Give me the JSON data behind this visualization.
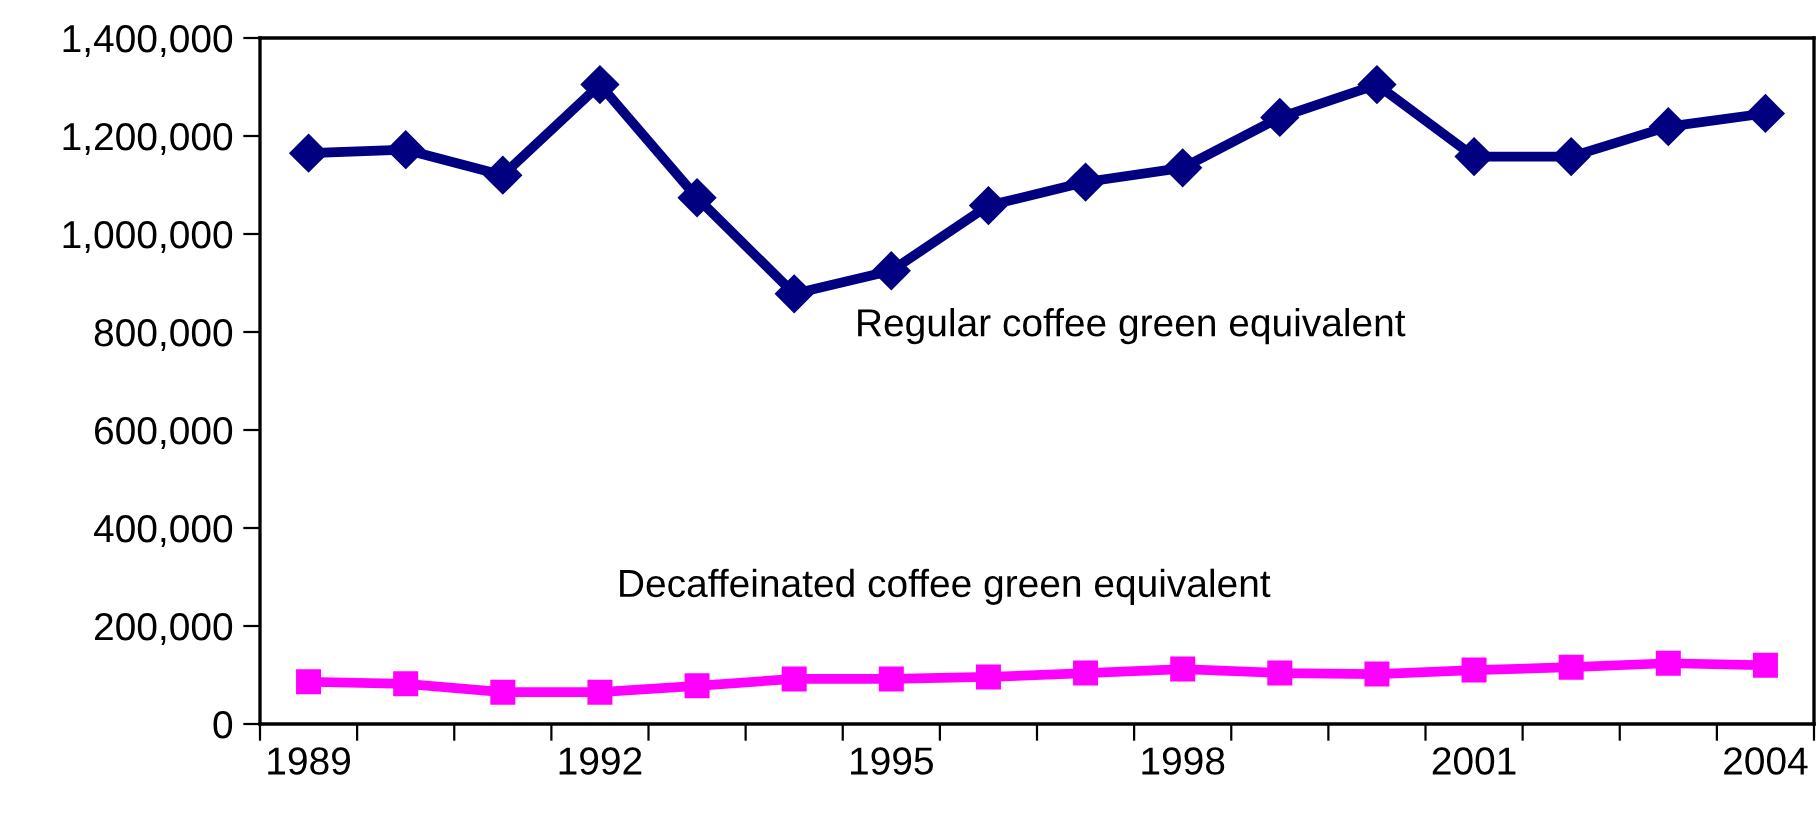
{
  "chart_data": {
    "type": "line",
    "categories": [
      "1989",
      null,
      null,
      "1992",
      null,
      null,
      "1995",
      null,
      null,
      "1998",
      null,
      null,
      "2001",
      null,
      null,
      "2004"
    ],
    "series": [
      {
        "name": "Regular coffee green equivalent",
        "color": "#000080",
        "marker": "diamond",
        "values": [
          1165000,
          1172000,
          1120000,
          1305000,
          1074000,
          878000,
          925000,
          1058000,
          1106000,
          1135000,
          1238000,
          1305000,
          1158000,
          1158000,
          1219000,
          1246000
        ]
      },
      {
        "name": "Decaffeinated coffee green equivalent",
        "color": "#ff00ff",
        "marker": "square",
        "values": [
          86000,
          82000,
          65000,
          65000,
          78000,
          92000,
          92000,
          96000,
          104000,
          112000,
          104000,
          102000,
          110000,
          116000,
          124000,
          120000
        ]
      }
    ],
    "ylim": [
      0,
      1400000
    ],
    "yticks": [
      {
        "value": 0,
        "label": "0"
      },
      {
        "value": 200000,
        "label": "200,000"
      },
      {
        "value": 400000,
        "label": "400,000"
      },
      {
        "value": 600000,
        "label": "600,000"
      },
      {
        "value": 800000,
        "label": "800,000"
      },
      {
        "value": 1000000,
        "label": "1,000,000"
      },
      {
        "value": 1200000,
        "label": "1,200,000"
      },
      {
        "value": 1400000,
        "label": "1,400,000"
      }
    ],
    "grid": false,
    "legend": false,
    "line_style": "solid"
  }
}
